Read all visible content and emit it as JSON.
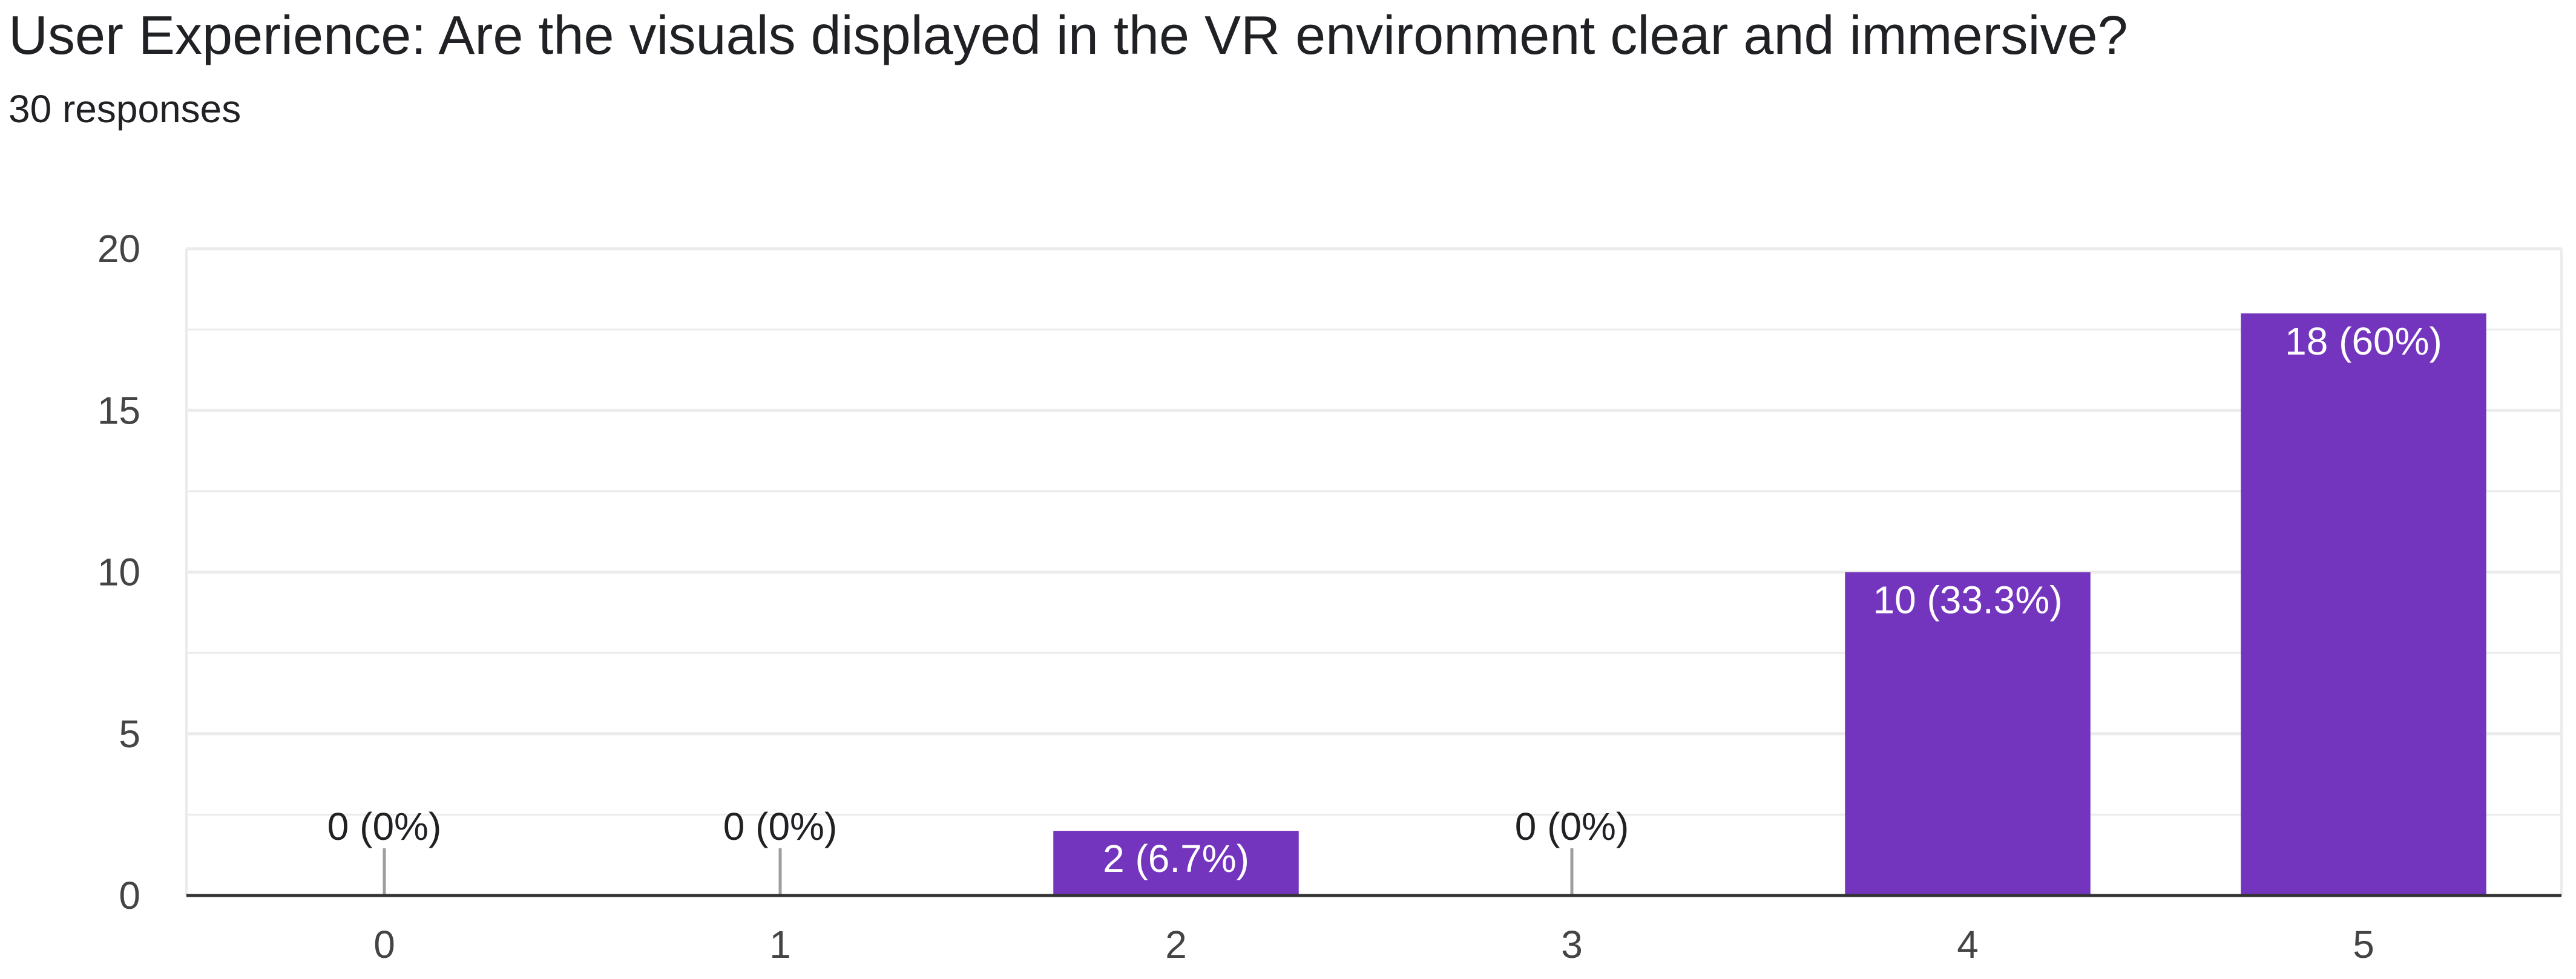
{
  "question": {
    "title": "User Experience: Are the visuals displayed in the VR environment clear and immersive?",
    "responses_label": "30 responses"
  },
  "colors": {
    "bar": "#7435BE",
    "grid": "#EBEBEB",
    "axis": "#333333",
    "zero_marker": "#9E9E9E",
    "label_inside": "#FFFFFF",
    "label_outside": "#202124"
  },
  "chart_data": {
    "type": "bar",
    "title": "User Experience: Are the visuals displayed in the VR environment clear and immersive?",
    "xlabel": "",
    "ylabel": "",
    "categories": [
      "0",
      "1",
      "2",
      "3",
      "4",
      "5"
    ],
    "values": [
      0,
      0,
      2,
      0,
      10,
      18
    ],
    "data_labels": [
      "0 (0%)",
      "0 (0%)",
      "2 (6.7%)",
      "0 (0%)",
      "10 (33.3%)",
      "18 (60%)"
    ],
    "ylim": [
      0,
      20
    ],
    "y_ticks": [
      0,
      5,
      10,
      15,
      20
    ],
    "y_tick_labels": [
      "0",
      "5",
      "10",
      "15",
      "20"
    ],
    "minor_gridlines": true,
    "legend": "none"
  }
}
